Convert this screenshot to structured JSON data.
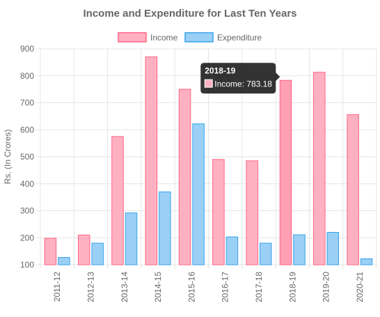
{
  "chart_data": {
    "type": "bar",
    "title": "Income and Expenditure for Last Ten Years",
    "ylabel": "Rs. (In Crores)",
    "xlabel": "",
    "categories": [
      "2011-12",
      "2012-13",
      "2013-14",
      "2014-15",
      "2015-16",
      "2016-17",
      "2017-18",
      "2018-19",
      "2019-20",
      "2020-21"
    ],
    "ylim": [
      100,
      900
    ],
    "yticks": [
      "100",
      "200",
      "300",
      "400",
      "500",
      "600",
      "700",
      "800",
      "900"
    ],
    "grid": true,
    "legend_position": "top",
    "series": [
      {
        "name": "Income",
        "values": [
          198,
          210,
          575,
          870,
          750,
          490,
          485,
          783.18,
          813,
          656
        ],
        "fill": "#ffb1c1",
        "stroke": "#ff6384",
        "highlight_fill": "#ff9fb4"
      },
      {
        "name": "Expenditure",
        "values": [
          127,
          180,
          292,
          370,
          622,
          203,
          180,
          211,
          220,
          122
        ],
        "fill": "#9ad0f5",
        "stroke": "#36a2eb",
        "highlight_fill": "#9ad0f5"
      }
    ],
    "tooltip": {
      "title": "2018-19",
      "body": "Income: 783.18",
      "category_index": 7,
      "series_index": 0
    }
  }
}
